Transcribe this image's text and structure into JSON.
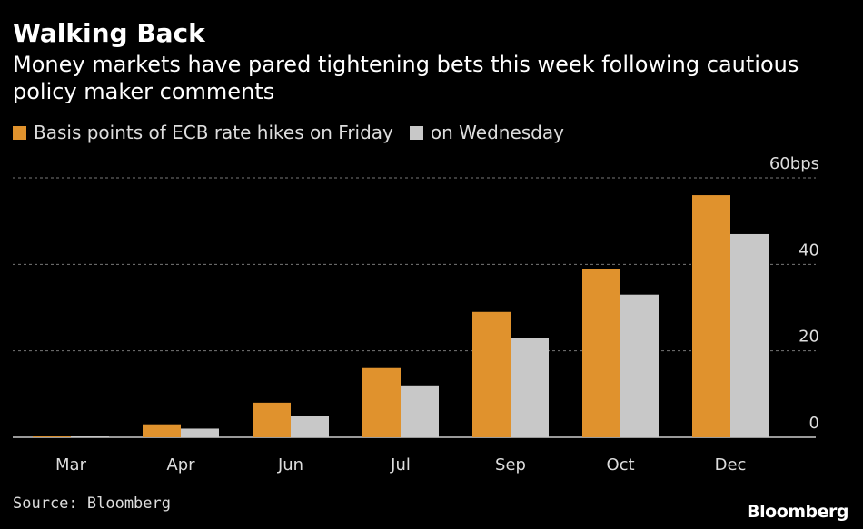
{
  "title": "Walking Back",
  "subtitle": "Money markets have pared tightening bets this week following cautious policy maker comments",
  "source": "Source: Bloomberg",
  "brand": "Bloomberg",
  "colors": {
    "friday": "#e0922d",
    "wednesday": "#c8c8c8",
    "background": "#000000",
    "grid": "#777777"
  },
  "chart_data": {
    "type": "bar",
    "categories": [
      "Mar",
      "Apr",
      "Jun",
      "Jul",
      "Sep",
      "Oct",
      "Dec"
    ],
    "series": [
      {
        "name": "Basis points of ECB rate hikes on Friday",
        "values": [
          0.2,
          3,
          8,
          16,
          29,
          39,
          56
        ]
      },
      {
        "name": "on Wednesday",
        "values": [
          0.2,
          2,
          5,
          12,
          23,
          33,
          47
        ]
      }
    ],
    "ytick_labels": [
      "0",
      "20",
      "40",
      "60bps"
    ],
    "yticks": [
      0,
      20,
      40,
      60
    ],
    "ylim": [
      0,
      60
    ],
    "grid": true,
    "legend": "top-left"
  }
}
